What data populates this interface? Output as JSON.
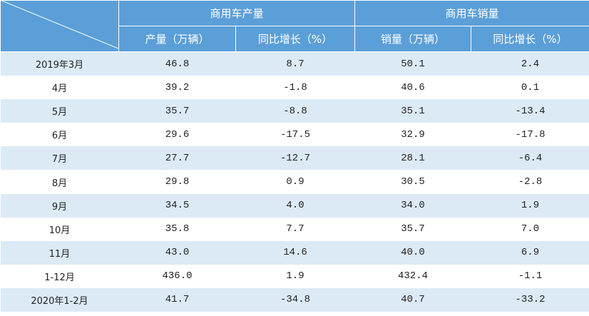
{
  "header": {
    "group_titles": [
      "商用车产量",
      "商用车销量"
    ],
    "columns": [
      "产量（万辆）",
      "同比增长（%）",
      "销量（万辆）",
      "同比增长（%）"
    ]
  },
  "table": {
    "rows": [
      [
        "2019年3月",
        "46.8",
        "8.7",
        "50.1",
        "2.4"
      ],
      [
        "4月",
        "39.2",
        "-1.8",
        "40.6",
        "0.1"
      ],
      [
        "5月",
        "35.7",
        "-8.8",
        "35.1",
        "-13.4"
      ],
      [
        "6月",
        "29.6",
        "-17.5",
        "32.9",
        "-17.8"
      ],
      [
        "7月",
        "27.7",
        "-12.7",
        "28.1",
        "-6.4"
      ],
      [
        "8月",
        "29.8",
        "0.9",
        "30.5",
        "-2.8"
      ],
      [
        "9月",
        "34.5",
        "4.0",
        "34.0",
        "1.9"
      ],
      [
        "10月",
        "35.8",
        "7.7",
        "35.7",
        "7.0"
      ],
      [
        "11月",
        "43.0",
        "14.6",
        "40.0",
        "6.9"
      ],
      [
        "1-12月",
        "436.0",
        "1.9",
        "432.4",
        "-1.1"
      ],
      [
        "2020年1-2月",
        "41.7",
        "-34.8",
        "40.7",
        "-33.2"
      ]
    ]
  }
}
